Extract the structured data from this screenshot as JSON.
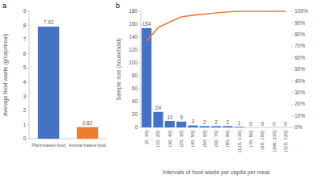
{
  "chart_data": [
    {
      "type": "bar",
      "title": "a",
      "y_label": "Average food waste (g/cap/meal)",
      "categories": [
        "Plant-based food",
        "Animal-based food"
      ],
      "values": [
        7.92,
        0.82
      ],
      "colors": [
        "#4472c4",
        "#ed7d31"
      ],
      "ylim": [
        0,
        9
      ],
      "yticks": [
        0,
        1,
        2,
        3,
        4,
        5,
        6,
        7,
        8,
        9
      ],
      "grid": false,
      "data_labels": true
    },
    {
      "type": "bar",
      "title": "b",
      "x_label": "Intervals of food waste per capita per meal",
      "y_label": "Sample size (household)",
      "categories": [
        "[0, 10]",
        "(10, 20]",
        "(30, 40]",
        "(20, 30]",
        "(40, 50]",
        "(50, 60]",
        "(60, 70]",
        "(80, 90]",
        "(120, 130]",
        "(70, 80]",
        "(90, 100]",
        "(100, 110]",
        "(110, 120]"
      ],
      "series": [
        {
          "type": "bar",
          "color": "#4472c4",
          "data_labels": true,
          "values": [
            154,
            24,
            10,
            9,
            3,
            2,
            2,
            2,
            1,
            0,
            0,
            0,
            0
          ]
        },
        {
          "type": "line",
          "color": "#ed7d31",
          "axis": "y2",
          "values": [
            74.4,
            86.0,
            90.8,
            95.2,
            96.6,
            97.6,
            98.6,
            99.5,
            100,
            100,
            100,
            100,
            100
          ]
        }
      ],
      "ylim": [
        0,
        180
      ],
      "yticks": [
        0,
        20,
        40,
        60,
        80,
        100,
        120,
        140,
        160,
        180
      ],
      "y2lim": [
        0,
        100
      ],
      "y2ticks": [
        {
          "value": 0,
          "label": "0%"
        },
        {
          "value": 10,
          "label": "10%"
        },
        {
          "value": 20,
          "label": "20%"
        },
        {
          "value": 30,
          "label": "30%"
        },
        {
          "value": 40,
          "label": "40%"
        },
        {
          "value": 50,
          "label": "50%"
        },
        {
          "value": 60,
          "label": "60%"
        },
        {
          "value": 70,
          "label": "70%"
        },
        {
          "value": 80,
          "label": "80%"
        },
        {
          "value": 90,
          "label": "90%"
        },
        {
          "value": 100,
          "label": "100%"
        }
      ],
      "grid": false
    }
  ]
}
